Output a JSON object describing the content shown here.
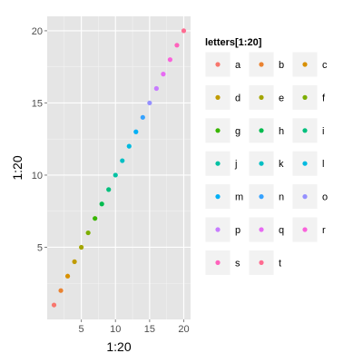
{
  "chart_data": {
    "type": "scatter",
    "title": "",
    "xlabel": "1:20",
    "ylabel": "1:20",
    "xlim": [
      0,
      21
    ],
    "ylim": [
      0,
      21
    ],
    "x_ticks": [
      5,
      10,
      15,
      20
    ],
    "y_ticks": [
      5,
      10,
      15,
      20
    ],
    "grid": true,
    "legend_title": "letters[1:20]",
    "legend_position": "right",
    "legend_columns": 3,
    "x": [
      1,
      2,
      3,
      4,
      5,
      6,
      7,
      8,
      9,
      10,
      11,
      12,
      13,
      14,
      15,
      16,
      17,
      18,
      19,
      20
    ],
    "y": [
      1,
      2,
      3,
      4,
      5,
      6,
      7,
      8,
      9,
      10,
      11,
      12,
      13,
      14,
      15,
      16,
      17,
      18,
      19,
      20
    ],
    "categories": [
      "a",
      "b",
      "c",
      "d",
      "e",
      "f",
      "g",
      "h",
      "i",
      "j",
      "k",
      "l",
      "m",
      "n",
      "o",
      "p",
      "q",
      "r",
      "s",
      "t"
    ],
    "colors": [
      "#F8766D",
      "#EA8331",
      "#D89000",
      "#C09B00",
      "#A3A500",
      "#7CAE00",
      "#39B600",
      "#00BB4E",
      "#00BF7D",
      "#00C1A3",
      "#00BFC4",
      "#00BAE0",
      "#00B0F6",
      "#35A2FF",
      "#9590FF",
      "#C77CFF",
      "#E76BF3",
      "#FA62DB",
      "#FF62BC",
      "#FF6C91"
    ],
    "panel_background": "#E5E5E5",
    "grid_color": "#FFFFFF"
  }
}
